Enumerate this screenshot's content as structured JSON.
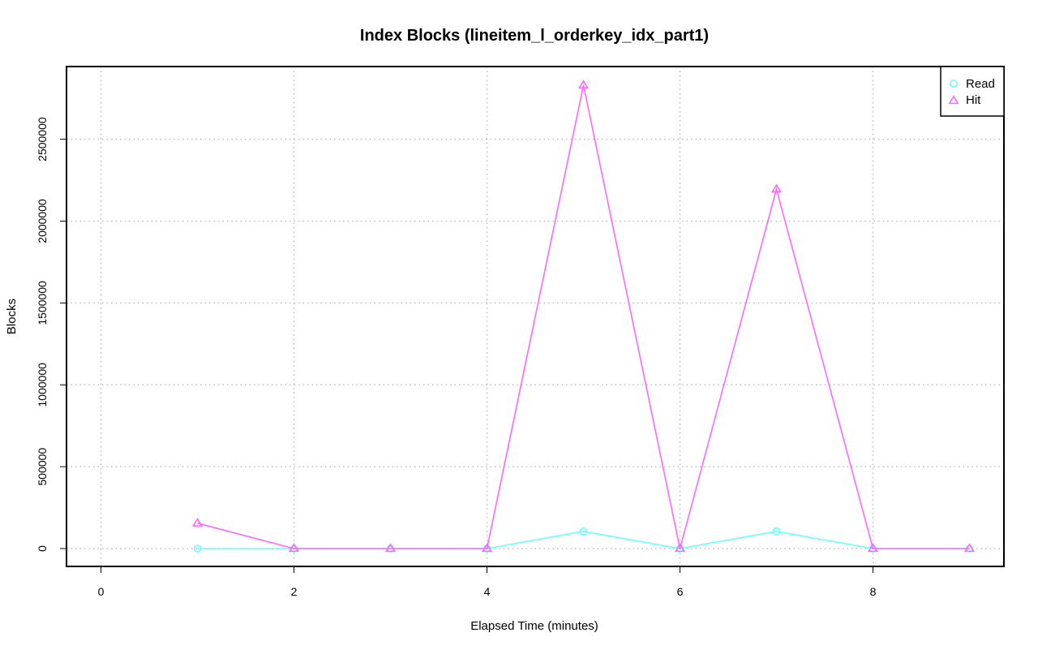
{
  "chart_data": {
    "type": "line",
    "title": "Index Blocks (lineitem_l_orderkey_idx_part1)",
    "xlabel": "Elapsed Time (minutes)",
    "ylabel": "Blocks",
    "xlim": [
      0,
      9
    ],
    "ylim": [
      0,
      2830000
    ],
    "x_ticks": [
      0,
      2,
      4,
      6,
      8
    ],
    "y_ticks": [
      0,
      500000,
      1000000,
      1500000,
      2000000,
      2500000
    ],
    "grid": true,
    "legend_position": "top-right",
    "x": [
      1,
      2,
      3,
      4,
      5,
      6,
      7,
      8,
      9
    ],
    "series": [
      {
        "name": "Read",
        "marker": "circle",
        "color": "#66FFFF",
        "values": [
          0,
          0,
          0,
          0,
          105000,
          0,
          105000,
          0,
          0
        ]
      },
      {
        "name": "Hit",
        "marker": "triangle",
        "color": "#FF66FF",
        "values": [
          155000,
          0,
          0,
          0,
          2830000,
          0,
          2195000,
          0,
          0
        ]
      }
    ]
  }
}
